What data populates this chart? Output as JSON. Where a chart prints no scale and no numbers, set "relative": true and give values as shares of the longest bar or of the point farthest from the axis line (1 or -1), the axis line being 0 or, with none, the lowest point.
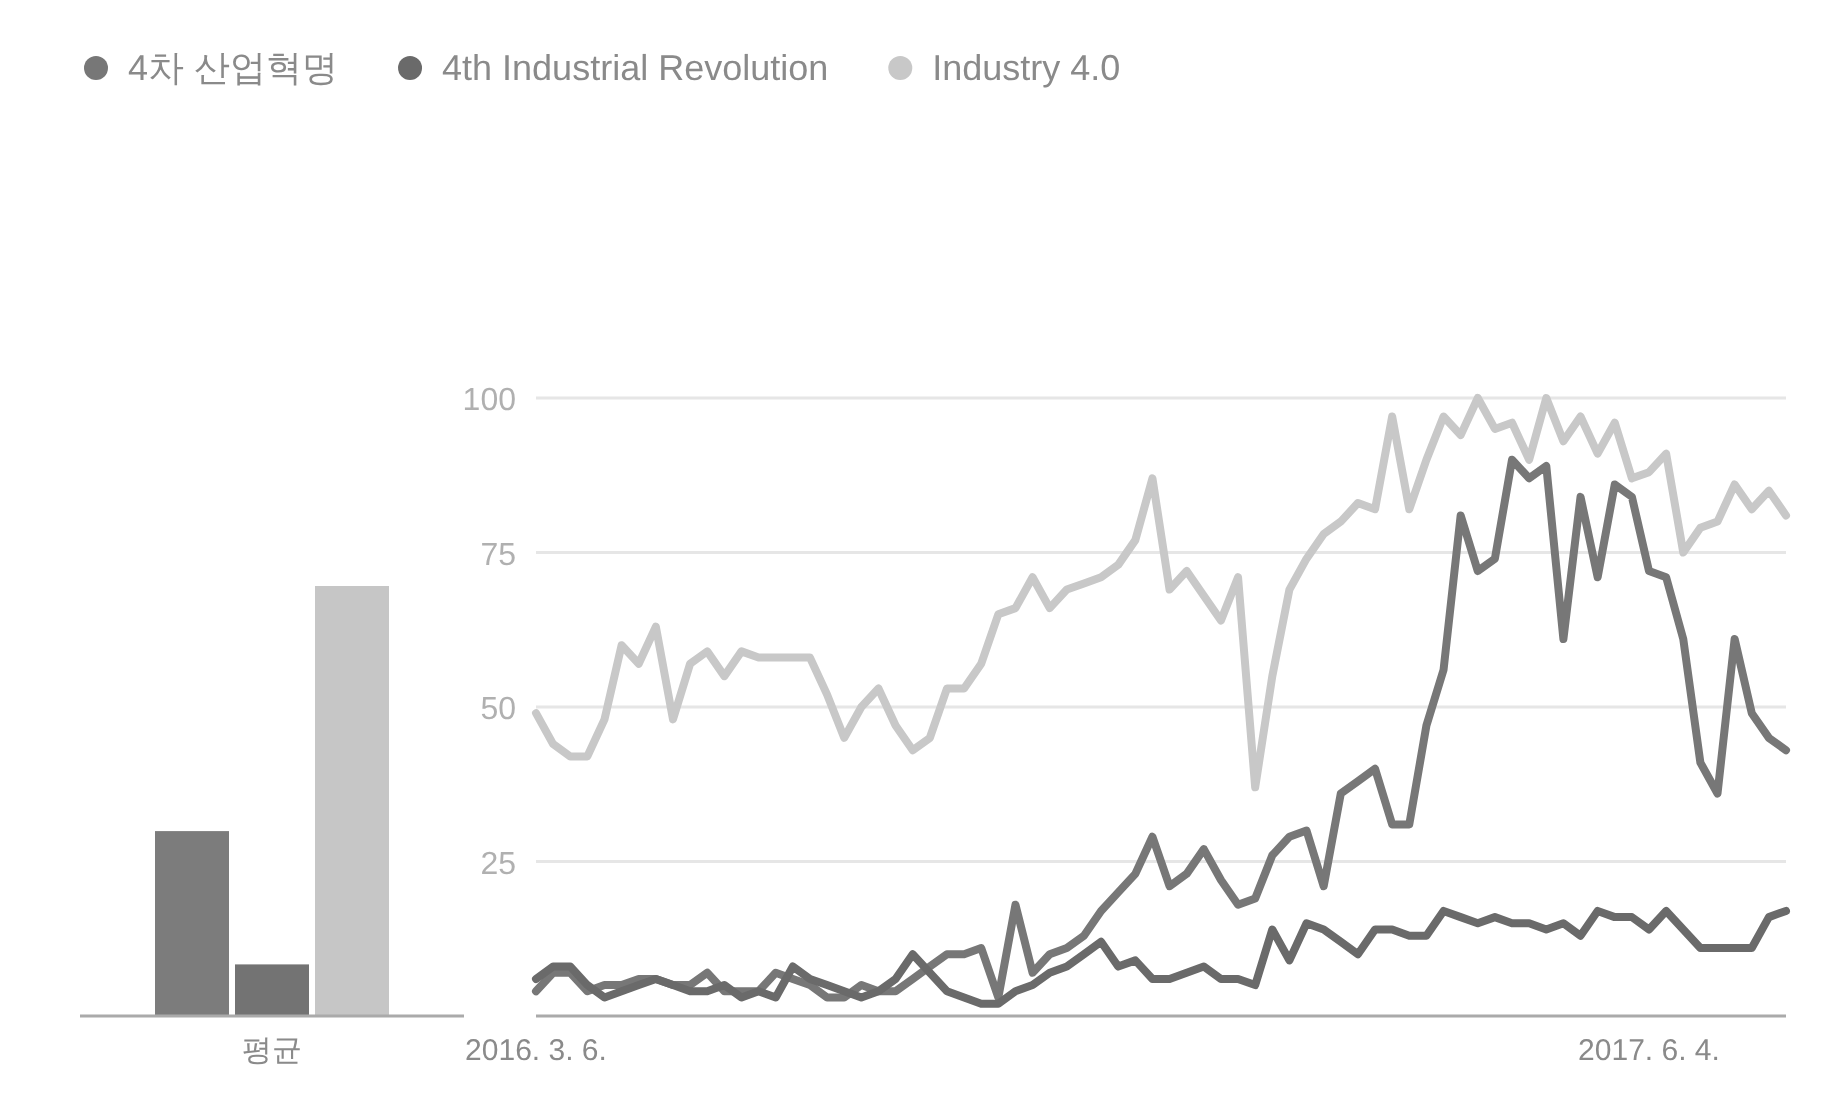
{
  "chart_data": [
    {
      "type": "bar",
      "relative": true,
      "categories": [
        "평균"
      ],
      "series": [
        {
          "color": "#7c7c7c",
          "values": [
            0.43
          ]
        },
        {
          "color": "#737373",
          "values": [
            0.12
          ]
        },
        {
          "color": "#c6c6c6",
          "values": [
            1
          ]
        }
      ]
    },
    {
      "type": "line",
      "legend": "top left",
      "grid": "y",
      "x": [
        "2016-03-06",
        "2016-03-13",
        "2016-03-20",
        "2016-03-27",
        "2016-04-03",
        "2016-04-10",
        "2016-04-17",
        "2016-04-24",
        "2016-05-01",
        "2016-05-08",
        "2016-05-15",
        "2016-05-22",
        "2016-05-29",
        "2016-06-05",
        "2016-06-12",
        "2016-06-19",
        "2016-06-26",
        "2016-07-03",
        "2016-07-10",
        "2016-07-17",
        "2016-07-24",
        "2016-07-31",
        "2016-08-07",
        "2016-08-14",
        "2016-08-21",
        "2016-08-28",
        "2016-09-04",
        "2016-09-11",
        "2016-09-18",
        "2016-09-25",
        "2016-10-02",
        "2016-10-09",
        "2016-10-16",
        "2016-10-23",
        "2016-10-30",
        "2016-11-06",
        "2016-11-13",
        "2016-11-20",
        "2016-11-27",
        "2016-12-04",
        "2016-12-11",
        "2016-12-18",
        "2016-12-25",
        "2017-01-01",
        "2017-01-08",
        "2017-01-15",
        "2017-01-22",
        "2017-01-29",
        "2017-02-05",
        "2017-02-12",
        "2017-02-19",
        "2017-02-26",
        "2017-03-05",
        "2017-03-12",
        "2017-03-19",
        "2017-03-26",
        "2017-04-02",
        "2017-04-09",
        "2017-04-16",
        "2017-04-23",
        "2017-04-30",
        "2017-05-07",
        "2017-05-14",
        "2017-05-21",
        "2017-05-28",
        "2017-06-04",
        "2017-06-11",
        "2017-06-18",
        "2017-06-25",
        "2017-07-02",
        "2017-07-09",
        "2017-07-16",
        "2017-07-23",
        "2017-07-30"
      ],
      "xlim": [
        "2016-03-06",
        "2017-07-30"
      ],
      "xticks": [
        {
          "value": "2016-03-06",
          "label": "2016. 3. 6."
        },
        {
          "value": "2017-06-04",
          "label": "2017. 6. 4."
        }
      ],
      "ylim": [
        0,
        100
      ],
      "yticks": [
        25,
        50,
        75,
        100
      ],
      "series": [
        {
          "name": "4차 산업혁명",
          "color": "#777777",
          "values": [
            4,
            7,
            7,
            4,
            5,
            5,
            6,
            6,
            5,
            5,
            7,
            4,
            4,
            4,
            7,
            6,
            5,
            3,
            3,
            5,
            4,
            4,
            6,
            8,
            10,
            10,
            11,
            3,
            18,
            7,
            10,
            11,
            13,
            17,
            20,
            23,
            29,
            21,
            23,
            27,
            22,
            18,
            19,
            26,
            29,
            30,
            21,
            36,
            38,
            40,
            31,
            31,
            47,
            56,
            81,
            72,
            74,
            90,
            87,
            89,
            61,
            84,
            71,
            86,
            84,
            72,
            71,
            61,
            41,
            36,
            61,
            49,
            45,
            43
          ]
        },
        {
          "name": "4th Industrial Revolution",
          "color": "#6a6a6a",
          "values": [
            6,
            8,
            8,
            5,
            3,
            4,
            5,
            6,
            5,
            4,
            4,
            5,
            3,
            4,
            3,
            8,
            6,
            5,
            4,
            3,
            4,
            6,
            10,
            7,
            4,
            3,
            2,
            2,
            4,
            5,
            7,
            8,
            10,
            12,
            8,
            9,
            6,
            6,
            7,
            8,
            6,
            6,
            5,
            14,
            9,
            15,
            14,
            12,
            10,
            14,
            14,
            13,
            13,
            17,
            16,
            15,
            16,
            15,
            15,
            14,
            15,
            13,
            17,
            16,
            16,
            14,
            17,
            14,
            11,
            11,
            11,
            11,
            16,
            17
          ]
        },
        {
          "name": "Industry 4.0",
          "color": "#c8c8c8",
          "values": [
            49,
            44,
            42,
            42,
            48,
            60,
            57,
            63,
            48,
            57,
            59,
            55,
            59,
            58,
            58,
            58,
            58,
            52,
            45,
            50,
            53,
            47,
            43,
            45,
            53,
            53,
            57,
            65,
            66,
            71,
            66,
            69,
            70,
            71,
            73,
            77,
            87,
            69,
            72,
            68,
            64,
            71,
            37,
            55,
            69,
            74,
            78,
            80,
            83,
            82,
            97,
            82,
            90,
            97,
            94,
            100,
            95,
            96,
            90,
            100,
            93,
            97,
            91,
            96,
            87,
            88,
            91,
            75,
            79,
            80,
            86,
            82,
            85,
            81
          ]
        }
      ]
    }
  ]
}
